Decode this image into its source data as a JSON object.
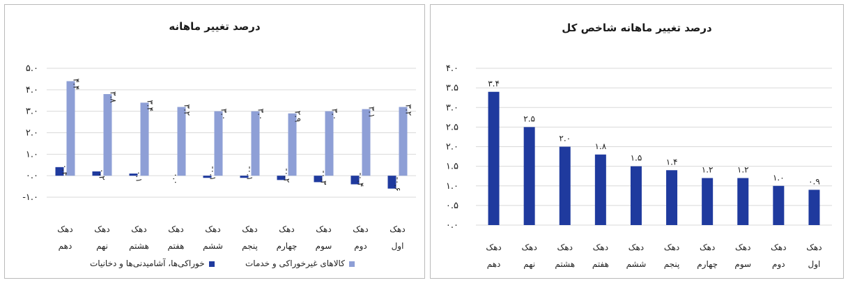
{
  "colors": {
    "dark": "#1f3a9e",
    "light": "#8e9fd6",
    "grid": "#d9d9d9"
  },
  "chart_data": [
    {
      "type": "bar",
      "title": "درصد تغییر ماهانه",
      "categories": [
        [
          "دهک",
          "اول"
        ],
        [
          "دهک",
          "دوم"
        ],
        [
          "دهک",
          "سوم"
        ],
        [
          "دهک",
          "چهارم"
        ],
        [
          "دهک",
          "پنجم"
        ],
        [
          "دهک",
          "ششم"
        ],
        [
          "دهک",
          "هفتم"
        ],
        [
          "دهک",
          "هشتم"
        ],
        [
          "دهک",
          "نهم"
        ],
        [
          "دهک",
          "دهم"
        ]
      ],
      "ylim": [
        -1.0,
        5.0
      ],
      "yticks": [
        "-۱.۰",
        "۰.۰",
        "۱.۰",
        "۲.۰",
        "۳.۰",
        "۴.۰",
        "۵.۰"
      ],
      "ytick_values": [
        -1,
        0,
        1,
        2,
        3,
        4,
        5
      ],
      "legend_position": "bottom",
      "grid": true,
      "series": [
        {
          "name": "خوراکی‌ها، آشامیدنی‌ها و دخانیات",
          "color": "dark",
          "values": [
            -0.6,
            -0.4,
            -0.3,
            -0.2,
            -0.1,
            -0.1,
            0.0,
            0.1,
            0.2,
            0.4
          ],
          "labels": [
            "-۰.۶",
            "-۰.۴",
            "-۰.۳",
            "-۰.۲",
            "-۰.۱",
            "-۰.۱",
            "۰.۰",
            "۰.۱",
            "۰.۲",
            "۰.۴"
          ]
        },
        {
          "name": "کالاهای غیرخوراکی و خدمات",
          "color": "light",
          "values": [
            3.2,
            3.1,
            3.0,
            2.9,
            3.0,
            3.0,
            3.2,
            3.4,
            3.8,
            4.4
          ],
          "labels": [
            "۳.۲",
            "۳.۱",
            "۳.۰",
            "۲.۹",
            "۳.۰",
            "۳.۰",
            "۳.۲",
            "۳.۴",
            "۳.۸",
            "۴.۴"
          ]
        }
      ]
    },
    {
      "type": "bar",
      "title": "درصد تغییر ماهانه شاخص کل",
      "categories": [
        [
          "دهک",
          "اول"
        ],
        [
          "دهک",
          "دوم"
        ],
        [
          "دهک",
          "سوم"
        ],
        [
          "دهک",
          "چهارم"
        ],
        [
          "دهک",
          "پنجم"
        ],
        [
          "دهک",
          "ششم"
        ],
        [
          "دهک",
          "هفتم"
        ],
        [
          "دهک",
          "هشتم"
        ],
        [
          "دهک",
          "نهم"
        ],
        [
          "دهک",
          "دهم"
        ]
      ],
      "ylim": [
        0.0,
        4.0
      ],
      "yticks": [
        "۰.۰",
        "۰.۵",
        "۱.۰",
        "۱.۵",
        "۲.۰",
        "۲.۵",
        "۳.۰",
        "۳.۵",
        "۴.۰"
      ],
      "ytick_values": [
        0,
        0.5,
        1,
        1.5,
        2,
        2.5,
        3,
        3.5,
        4
      ],
      "grid": true,
      "series": [
        {
          "color": "dark",
          "values": [
            0.9,
            1.0,
            1.2,
            1.2,
            1.4,
            1.5,
            1.8,
            2.0,
            2.5,
            3.4
          ],
          "labels": [
            "۰.۹",
            "۱.۰",
            "۱.۲",
            "۱.۲",
            "۱.۴",
            "۱.۵",
            "۱.۸",
            "۲.۰",
            "۲.۵",
            "۳.۴"
          ]
        }
      ]
    }
  ]
}
